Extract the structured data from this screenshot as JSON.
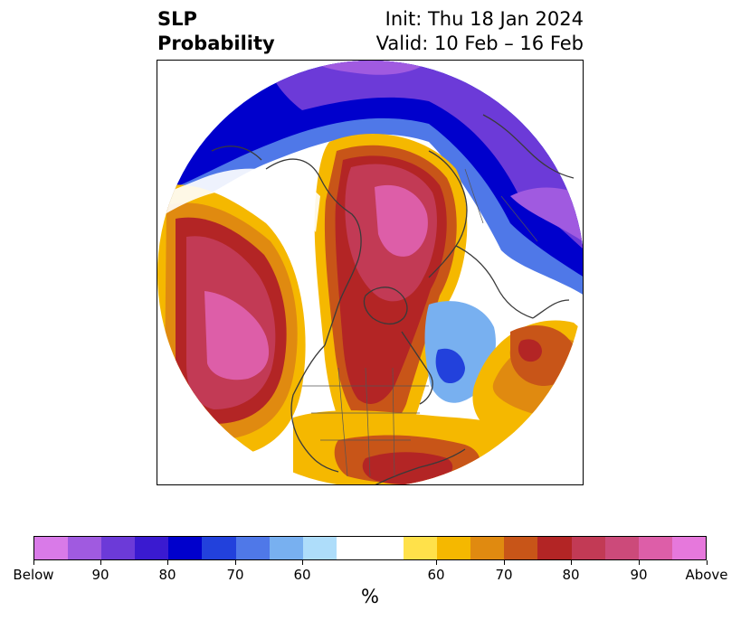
{
  "header": {
    "left_line1": "SLP",
    "left_line2": "Probability",
    "right_line1": "Init: Thu 18 Jan 2024",
    "right_line2": "Valid: 10 Feb – 16 Feb"
  },
  "colorbar": {
    "unit": "%",
    "colors": [
      "#d97ae8",
      "#a05ae0",
      "#6c3ad8",
      "#3a1ad0",
      "#0000cc",
      "#2241dc",
      "#4f78e8",
      "#78b0f0",
      "#aeddfa",
      "#ffffff",
      "#ffe14a",
      "#f5b800",
      "#e08a10",
      "#c85518",
      "#b32525",
      "#c23a55",
      "#cc4a7a",
      "#dd5ea8",
      "#e678dc"
    ],
    "tick_labels": [
      "Below",
      "90",
      "80",
      "70",
      "60",
      "60",
      "70",
      "80",
      "90",
      "Above"
    ]
  },
  "map": {
    "projection": "north-polar-stereographic",
    "legend_palette": {
      "above_high": "#dd5ea8",
      "above_mid": "#c23a55",
      "above_low": "#b32525",
      "above_orange": "#c85518",
      "above_amber": "#e08a10",
      "above_gold": "#f5b800",
      "above_yellow": "#ffe14a",
      "below_pale": "#aeddfa",
      "below_light": "#78b0f0",
      "below_blue": "#2241dc",
      "below_deep": "#0000cc",
      "below_purple": "#6c3ad8",
      "below_violet": "#a05ae0"
    }
  }
}
